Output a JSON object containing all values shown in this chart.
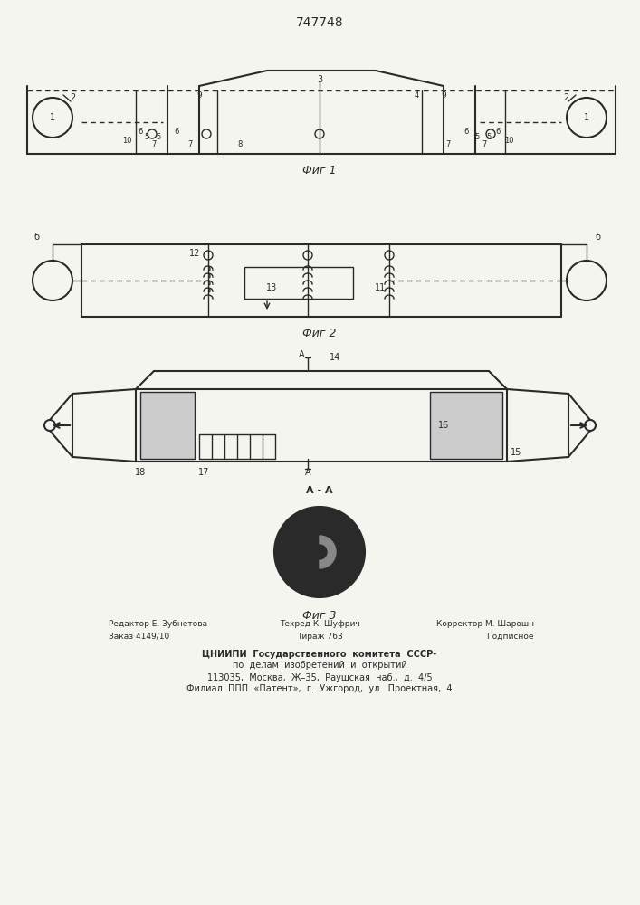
{
  "title": "747748",
  "fig1_caption": "Фиг 1",
  "fig2_caption": "Фиг 2",
  "fig3_caption": "Фиг 3",
  "section_label": "А - А",
  "bg_color": "#f5f5f0",
  "line_color": "#2a2a2a",
  "footer_lines": [
    [
      "Редактор Е. Зубнетова",
      "Техред К. Шуфрич",
      "Корректор М. Шарошн"
    ],
    [
      "Заказ 4149/10",
      "Тираж 763",
      "Подписное"
    ],
    [
      "ЦНИИПИ  Государственного  комитета  СССР-"
    ],
    [
      "по  делам  изобретений  и  открытий"
    ],
    [
      "113035,  Москва,  Ж–35,  Раушская  наб.,  д.  4/5"
    ],
    [
      "Филиал  ППП  «Патент»,  г.  Ужгород,  ул.  Проектная,  4"
    ]
  ]
}
